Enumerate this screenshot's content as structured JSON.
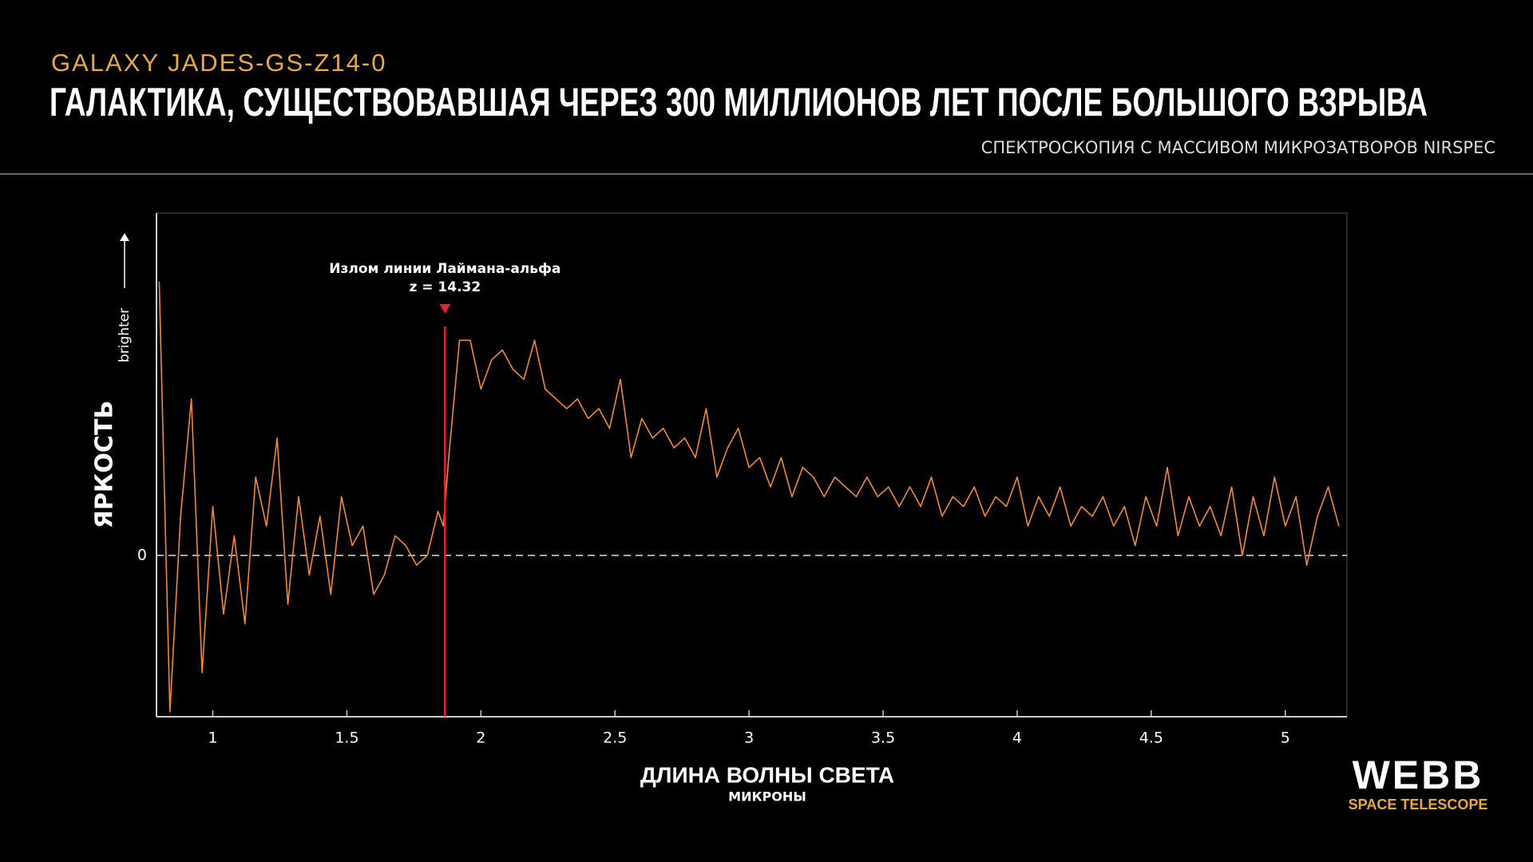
{
  "chart_data": {
    "type": "line",
    "supertitle": "GALAXY JADES-GS-Z14-0",
    "title": "ГАЛАКТИКА, СУЩЕСТВОВАВШАЯ ЧЕРЕЗ 300 МИЛЛИОНОВ ЛЕТ ПОСЛЕ БОЛЬШОГО ВЗРЫВА",
    "subtitle": "СПЕКТРОСКОПИЯ С МАССИВОМ МИКРОЗАТВОРОВ NIRSPEC",
    "y_label": "ЯРКОСТЬ",
    "y_direction_label": "brighter",
    "x_label": "ДЛИНА ВОЛНЫ СВЕТА",
    "x_unit": "МИКРОНЫ",
    "logo": {
      "name": "WEBB",
      "subtitle": "SPACE TELESCOPE"
    },
    "annotation": {
      "text": [
        "Излом линии Лаймана-альфа",
        "z = 14.32"
      ],
      "x": 1.866,
      "color": "#e8242a"
    },
    "color": "#ef8a3c",
    "x": [
      0.8,
      0.84,
      0.88,
      0.92,
      0.96,
      1.0,
      1.04,
      1.08,
      1.12,
      1.16,
      1.2,
      1.24,
      1.28,
      1.32,
      1.36,
      1.4,
      1.44,
      1.48,
      1.52,
      1.56,
      1.6,
      1.64,
      1.68,
      1.72,
      1.76,
      1.8,
      1.84,
      1.86,
      1.88,
      1.92,
      1.96,
      2.0,
      2.04,
      2.08,
      2.12,
      2.16,
      2.2,
      2.24,
      2.28,
      2.32,
      2.36,
      2.4,
      2.44,
      2.48,
      2.52,
      2.56,
      2.6,
      2.64,
      2.68,
      2.72,
      2.76,
      2.8,
      2.84,
      2.88,
      2.92,
      2.96,
      3.0,
      3.04,
      3.08,
      3.12,
      3.16,
      3.2,
      3.24,
      3.28,
      3.32,
      3.36,
      3.4,
      3.44,
      3.48,
      3.52,
      3.56,
      3.6,
      3.64,
      3.68,
      3.72,
      3.76,
      3.8,
      3.84,
      3.88,
      3.92,
      3.96,
      4.0,
      4.04,
      4.08,
      4.12,
      4.16,
      4.2,
      4.24,
      4.28,
      4.32,
      4.36,
      4.4,
      4.44,
      4.48,
      4.52,
      4.56,
      4.6,
      4.64,
      4.68,
      4.72,
      4.76,
      4.8,
      4.84,
      4.88,
      4.92,
      4.96,
      5.0,
      5.04,
      5.08,
      5.12,
      5.16,
      5.2
    ],
    "values": [
      2.8,
      -1.6,
      0.4,
      1.6,
      -1.2,
      0.5,
      -0.6,
      0.2,
      -0.7,
      0.8,
      0.3,
      1.2,
      -0.5,
      0.6,
      -0.2,
      0.4,
      -0.4,
      0.6,
      0.1,
      0.3,
      -0.4,
      -0.2,
      0.2,
      0.1,
      -0.1,
      0.0,
      0.45,
      0.3,
      1.0,
      2.2,
      2.2,
      1.7,
      2.0,
      2.1,
      1.9,
      1.8,
      2.2,
      1.7,
      1.6,
      1.5,
      1.6,
      1.4,
      1.5,
      1.3,
      1.8,
      1.0,
      1.4,
      1.2,
      1.3,
      1.1,
      1.2,
      1.0,
      1.5,
      0.8,
      1.1,
      1.3,
      0.9,
      1.0,
      0.7,
      1.0,
      0.6,
      0.9,
      0.8,
      0.6,
      0.8,
      0.7,
      0.6,
      0.8,
      0.6,
      0.7,
      0.5,
      0.7,
      0.5,
      0.8,
      0.4,
      0.6,
      0.5,
      0.7,
      0.4,
      0.6,
      0.5,
      0.8,
      0.3,
      0.6,
      0.4,
      0.7,
      0.3,
      0.5,
      0.4,
      0.6,
      0.3,
      0.5,
      0.1,
      0.6,
      0.3,
      0.9,
      0.2,
      0.6,
      0.3,
      0.5,
      0.2,
      0.7,
      0.0,
      0.6,
      0.2,
      0.8,
      0.3,
      0.6,
      -0.1,
      0.4,
      0.7,
      0.3
    ],
    "xlim": [
      0.79,
      5.23
    ],
    "xticks": [
      1,
      1.5,
      2,
      2.5,
      3,
      3.5,
      4,
      4.5,
      5
    ],
    "ylim": [
      -1.65,
      3.5
    ],
    "yticks": [
      0
    ],
    "grid": true
  }
}
